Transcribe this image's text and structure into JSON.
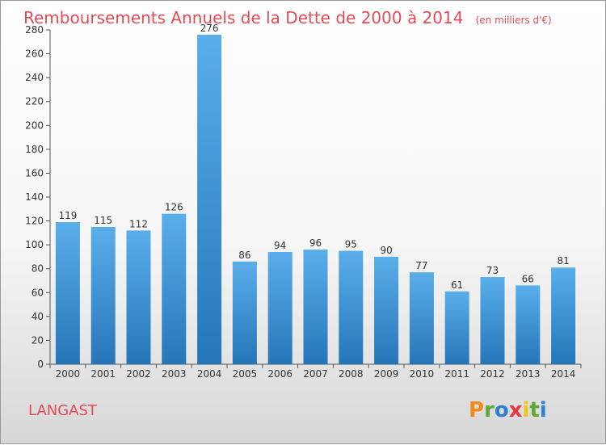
{
  "chart_data": {
    "type": "bar",
    "title": "Remboursements Annuels de la Dette de 2000 à 2014",
    "subtitle": "(en milliers d'€)",
    "xlabel": "",
    "ylabel": "",
    "categories": [
      "2000",
      "2001",
      "2002",
      "2003",
      "2004",
      "2005",
      "2006",
      "2007",
      "2008",
      "2009",
      "2010",
      "2011",
      "2012",
      "2013",
      "2014"
    ],
    "values": [
      119,
      115,
      112,
      126,
      276,
      86,
      94,
      96,
      95,
      90,
      77,
      61,
      73,
      66,
      81
    ],
    "ylim": [
      0,
      280
    ],
    "yticks": [
      0,
      20,
      40,
      60,
      80,
      100,
      120,
      140,
      160,
      180,
      200,
      220,
      240,
      260,
      280
    ],
    "grid": false,
    "legend": "none",
    "colors": {
      "bar_light": "#5aaeea",
      "bar_dark": "#2576b9",
      "title": "#e44b56"
    }
  },
  "commune": "LANGAST",
  "logo": {
    "letters": [
      "P",
      "r",
      "o",
      "x",
      "i",
      "t",
      "i"
    ],
    "colors": [
      "#f08a1c",
      "#5aa832",
      "#2e7fd1",
      "#e8373e",
      "#f2c21b",
      "#5aa832",
      "#2e7fd1"
    ]
  }
}
